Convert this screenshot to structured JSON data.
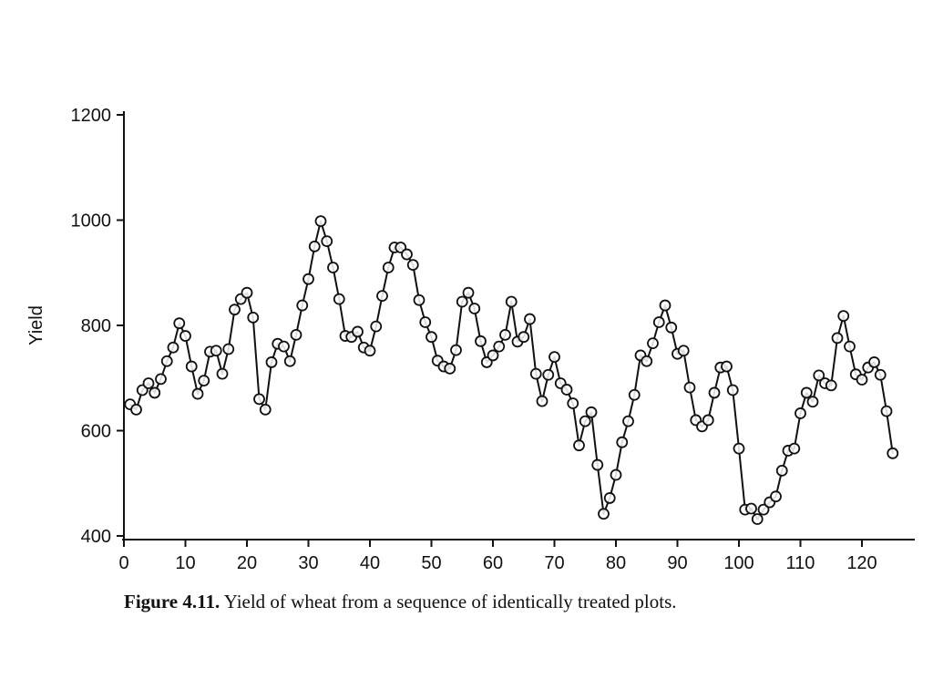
{
  "chart_data": {
    "type": "line",
    "title": "",
    "xlabel": "",
    "ylabel": "Yield",
    "xlim": [
      0,
      128
    ],
    "ylim": [
      400,
      1200
    ],
    "x_ticks": [
      0,
      10,
      20,
      30,
      40,
      50,
      60,
      70,
      80,
      90,
      100,
      110,
      120
    ],
    "y_ticks": [
      400,
      600,
      800,
      1000,
      1200
    ],
    "grid": false,
    "legend": "none",
    "marker": "open-circle",
    "line_color": "#111111",
    "series": [
      {
        "x": [
          1,
          2,
          3,
          4,
          5,
          6,
          7,
          8,
          9,
          10,
          11,
          12,
          13,
          14,
          15,
          16,
          17,
          18,
          19,
          20,
          21,
          22,
          23,
          24,
          25,
          26,
          27,
          28,
          29,
          30,
          31,
          32,
          33,
          34,
          35,
          36,
          37,
          38,
          39,
          40,
          41,
          42,
          43,
          44,
          45,
          46,
          47,
          48,
          49,
          50,
          51,
          52,
          53,
          54,
          55,
          56,
          57,
          58,
          59,
          60,
          61,
          62,
          63,
          64,
          65,
          66,
          67,
          68,
          69,
          70,
          71,
          72,
          73,
          74,
          75,
          76,
          77,
          78,
          79,
          80,
          81,
          82,
          83,
          84,
          85,
          86,
          87,
          88,
          89,
          90,
          91,
          92,
          93,
          94,
          95,
          96,
          97,
          98,
          99,
          100,
          101,
          102,
          103,
          104,
          105,
          106,
          107,
          108,
          109,
          110,
          111,
          112,
          113,
          114,
          115,
          116,
          117,
          118,
          119,
          120,
          121,
          122,
          123,
          124,
          125
        ],
        "values": [
          650,
          640,
          677,
          690,
          672,
          698,
          732,
          758,
          804,
          780,
          722,
          670,
          695,
          750,
          752,
          708,
          755,
          830,
          850,
          862,
          815,
          660,
          640,
          730,
          765,
          760,
          732,
          782,
          838,
          888,
          950,
          998,
          960,
          910,
          850,
          780,
          778,
          788,
          758,
          752,
          798,
          856,
          910,
          948,
          948,
          935,
          915,
          848,
          806,
          778,
          733,
          722,
          718,
          753,
          845,
          862,
          832,
          770,
          730,
          743,
          760,
          782,
          845,
          769,
          778,
          812,
          708,
          656,
          706,
          740,
          690,
          678,
          652,
          572,
          618,
          635,
          535,
          442,
          472,
          516,
          578,
          618,
          668,
          743,
          732,
          766,
          806,
          838,
          796,
          746,
          752,
          682,
          620,
          608,
          620,
          672,
          720,
          722,
          677,
          566,
          450,
          452,
          432,
          450,
          464,
          475,
          524,
          562,
          566,
          633,
          672,
          655,
          705,
          690,
          686,
          776,
          818,
          760,
          707,
          697,
          720,
          730,
          706,
          637,
          557
        ]
      }
    ]
  },
  "caption": {
    "number": "Figure 4.11.",
    "text": "Yield of wheat from a sequence of identically treated plots."
  }
}
